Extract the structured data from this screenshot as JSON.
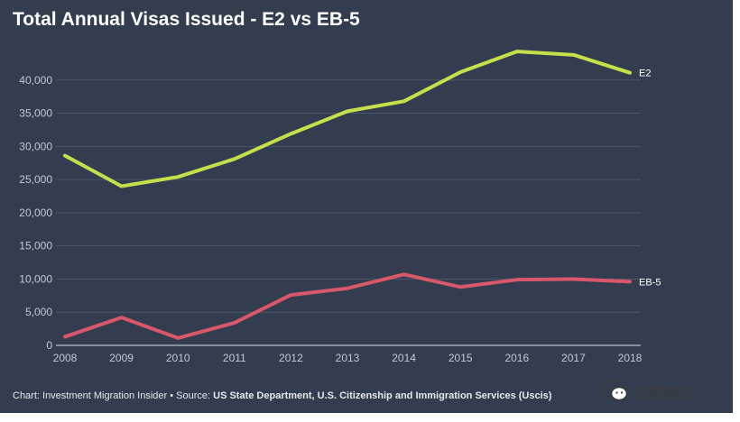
{
  "chart_data": {
    "type": "line",
    "title": "Total Annual Visas Issued - E2 vs EB-5",
    "x": [
      "2008",
      "2009",
      "2010",
      "2011",
      "2012",
      "2013",
      "2014",
      "2015",
      "2016",
      "2017",
      "2018"
    ],
    "y_ticks": [
      "0",
      "5,000",
      "10,000",
      "15,000",
      "20,000",
      "25,000",
      "30,000",
      "35,000",
      "40,000"
    ],
    "ylim": [
      0,
      45000
    ],
    "grid": true,
    "series": [
      {
        "name": "E2",
        "color": "#c5e04a",
        "values": [
          28600,
          24000,
          25400,
          28100,
          31900,
          35300,
          36800,
          41200,
          44300,
          43800,
          41100
        ]
      },
      {
        "name": "EB-5",
        "color": "#d9576a",
        "values": [
          1300,
          4200,
          1100,
          3400,
          7600,
          8600,
          10700,
          8800,
          9900,
          10000,
          9600
        ]
      }
    ]
  },
  "footer": {
    "source_prefix": "Chart: Investment Migration Insider • Source: ",
    "source_bold": "US State Department, U.S. Citizenship and Immigration Services (Uscis)"
  },
  "watermark": {
    "text": "绿野移民",
    "icon": "wechat-icon"
  }
}
